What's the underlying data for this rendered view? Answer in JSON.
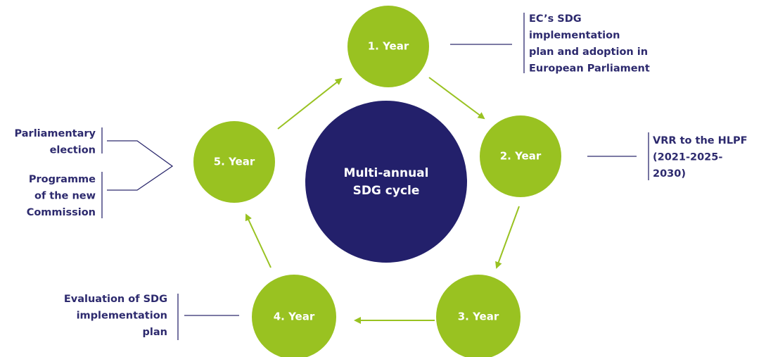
{
  "center": {
    "lines": [
      "Multi-annual",
      "SDG cycle"
    ]
  },
  "nodes": [
    {
      "label": "1. Year"
    },
    {
      "label": "2. Year"
    },
    {
      "label": "3. Year"
    },
    {
      "label": "4. Year"
    },
    {
      "label": "5. Year"
    }
  ],
  "annotations": [
    {
      "lines": [
        "EC’s SDG",
        "implementation",
        "plan and adoption in",
        "European Parliament"
      ]
    },
    {
      "lines": [
        "VRR to the HLPF",
        "(2021-2025-",
        "2030)"
      ]
    },
    {
      "lines": [
        "Evaluation of SDG",
        "implementation",
        "plan"
      ]
    },
    {
      "lines": [
        "Parliamentary",
        "election"
      ]
    },
    {
      "lines": [
        "Programme",
        "of the new",
        "Commission"
      ]
    }
  ]
}
